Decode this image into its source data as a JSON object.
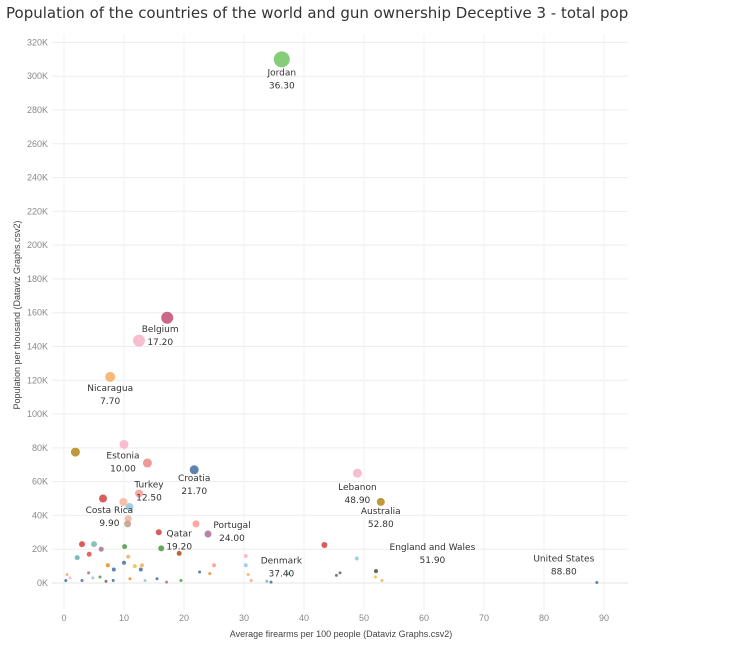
{
  "chart_data": {
    "type": "scatter",
    "title": "Population of the countries of the world and gun ownership Deceptive 3 - total pop",
    "xlabel": "Average firearms per 100 people (Dataviz Graphs.csv2)",
    "ylabel": "Population per thousand (Dataviz Graphs.csv2)",
    "xlim": [
      -2,
      94
    ],
    "ylim": [
      -16000,
      325000
    ],
    "x_ticks": [
      0,
      10,
      20,
      30,
      40,
      50,
      60,
      70,
      80,
      90
    ],
    "y_ticks": [
      0,
      20000,
      40000,
      60000,
      80000,
      100000,
      120000,
      140000,
      160000,
      180000,
      200000,
      220000,
      240000,
      260000,
      280000,
      300000,
      320000
    ],
    "y_tick_labels": [
      "0K",
      "20K",
      "40K",
      "60K",
      "80K",
      "100K",
      "120K",
      "140K",
      "160K",
      "180K",
      "200K",
      "220K",
      "240K",
      "260K",
      "280K",
      "300K",
      "320K"
    ],
    "grid": true,
    "points": [
      {
        "x": 36.3,
        "y": 310000,
        "label": "Jordan",
        "value_label": "36.30",
        "color": "#7cc96f",
        "size": 8
      },
      {
        "x": 17.2,
        "y": 157000,
        "label": "Belgium",
        "value_label": "17.20",
        "color": "#c85a7c",
        "size": 6
      },
      {
        "x": 12.5,
        "y": 143500,
        "label": "",
        "value_label": "",
        "color": "#f7b9cc",
        "size": 6
      },
      {
        "x": 7.7,
        "y": 122000,
        "label": "Nicaragua",
        "value_label": "7.70",
        "color": "#f9b36a",
        "size": 5
      },
      {
        "x": 10.0,
        "y": 82000,
        "label": "Estonia",
        "value_label": "10.00",
        "color": "#f7b9cc",
        "size": 4.5
      },
      {
        "x": 13.9,
        "y": 71000,
        "label": "",
        "value_label": "",
        "color": "#ee8f8f",
        "size": 4.5
      },
      {
        "x": 1.9,
        "y": 77500,
        "label": "",
        "value_label": "",
        "color": "#b8912a",
        "size": 4.5
      },
      {
        "x": 21.7,
        "y": 67000,
        "label": "Croatia",
        "value_label": "21.70",
        "color": "#4e79a7",
        "size": 4.5
      },
      {
        "x": 12.5,
        "y": 53000,
        "label": "Turkey",
        "value_label": "12.50",
        "color": "#ff9d9a",
        "size": 4
      },
      {
        "x": 6.5,
        "y": 50000,
        "label": "",
        "value_label": "",
        "color": "#d64f4f",
        "size": 4
      },
      {
        "x": 9.9,
        "y": 48000,
        "label": "Costa Rica",
        "value_label": "9.90",
        "color": "#f7b9a0",
        "size": 4
      },
      {
        "x": 10.9,
        "y": 45000,
        "label": "",
        "value_label": "",
        "color": "#9ecae1",
        "size": 4
      },
      {
        "x": 10.7,
        "y": 38000,
        "label": "",
        "value_label": "",
        "color": "#f2b9a0",
        "size": 3.5
      },
      {
        "x": 10.6,
        "y": 35000,
        "label": "",
        "value_label": "",
        "color": "#c4a494",
        "size": 3.5
      },
      {
        "x": 48.9,
        "y": 65000,
        "label": "Lebanon",
        "value_label": "48.90",
        "color": "#f7b9cc",
        "size": 4.5
      },
      {
        "x": 52.8,
        "y": 48000,
        "label": "Australia",
        "value_label": "52.80",
        "color": "#b8912a",
        "size": 4
      },
      {
        "x": 22.0,
        "y": 35000,
        "label": "",
        "value_label": "",
        "color": "#ff9d9a",
        "size": 3.5
      },
      {
        "x": 24.0,
        "y": 29000,
        "label": "Portugal",
        "value_label": "24.00",
        "color": "#b07aa1",
        "size": 3.5
      },
      {
        "x": 19.2,
        "y": 17500,
        "label": "Qatar",
        "value_label": "19.20",
        "color": "#b6582a",
        "size": 2.5
      },
      {
        "x": 15.8,
        "y": 30000,
        "label": "",
        "value_label": "",
        "color": "#d64f4f",
        "size": 3
      },
      {
        "x": 16.2,
        "y": 20500,
        "label": "",
        "value_label": "",
        "color": "#59a14f",
        "size": 3
      },
      {
        "x": 3.0,
        "y": 23000,
        "label": "",
        "value_label": "",
        "color": "#d64f4f",
        "size": 3
      },
      {
        "x": 5.0,
        "y": 23000,
        "label": "",
        "value_label": "",
        "color": "#86bcb6",
        "size": 3
      },
      {
        "x": 6.2,
        "y": 20000,
        "label": "",
        "value_label": "",
        "color": "#b07aa1",
        "size": 2.5
      },
      {
        "x": 4.2,
        "y": 17000,
        "label": "",
        "value_label": "",
        "color": "#e15759",
        "size": 2.5
      },
      {
        "x": 2.2,
        "y": 15000,
        "label": "",
        "value_label": "",
        "color": "#76b7b2",
        "size": 2.5
      },
      {
        "x": 10.1,
        "y": 21500,
        "label": "",
        "value_label": "",
        "color": "#59a14f",
        "size": 2.5
      },
      {
        "x": 10.7,
        "y": 15500,
        "label": "",
        "value_label": "",
        "color": "#f9b36a",
        "size": 2
      },
      {
        "x": 10.0,
        "y": 12000,
        "label": "",
        "value_label": "",
        "color": "#4e79a7",
        "size": 2
      },
      {
        "x": 7.3,
        "y": 10500,
        "label": "",
        "value_label": "",
        "color": "#f28e2b",
        "size": 2
      },
      {
        "x": 11.8,
        "y": 10000,
        "label": "",
        "value_label": "",
        "color": "#edc948",
        "size": 2
      },
      {
        "x": 13.0,
        "y": 10500,
        "label": "",
        "value_label": "",
        "color": "#f9b36a",
        "size": 2
      },
      {
        "x": 8.3,
        "y": 8000,
        "label": "",
        "value_label": "",
        "color": "#4e79a7",
        "size": 2
      },
      {
        "x": 12.8,
        "y": 8000,
        "label": "",
        "value_label": "",
        "color": "#4e79a7",
        "size": 2
      },
      {
        "x": 43.4,
        "y": 22500,
        "label": "",
        "value_label": "",
        "color": "#d64f4f",
        "size": 3
      },
      {
        "x": 48.8,
        "y": 14500,
        "label": "",
        "value_label": "",
        "color": "#9ecae1",
        "size": 2
      },
      {
        "x": 52.0,
        "y": 7000,
        "label": "",
        "value_label": "",
        "color": "#59594f",
        "size": 2
      },
      {
        "x": 46.0,
        "y": 6000,
        "label": "",
        "value_label": "",
        "color": "#79706e",
        "size": 1.5
      },
      {
        "x": 45.4,
        "y": 4500,
        "label": "",
        "value_label": "",
        "color": "#79706e",
        "size": 1.5
      },
      {
        "x": 30.3,
        "y": 16000,
        "label": "",
        "value_label": "",
        "color": "#f7b9cc",
        "size": 2
      },
      {
        "x": 30.3,
        "y": 10500,
        "label": "",
        "value_label": "",
        "color": "#9ecae1",
        "size": 2
      },
      {
        "x": 30.7,
        "y": 5000,
        "label": "",
        "value_label": "",
        "color": "#f9b36a",
        "size": 1.5
      },
      {
        "x": 37.4,
        "y": 5500,
        "label": "Denmark",
        "value_label": "37.40",
        "color": "#86bcb6",
        "size": 1.5
      },
      {
        "x": 33.8,
        "y": 1000,
        "label": "",
        "value_label": "",
        "color": "#86bcb6",
        "size": 1.5
      },
      {
        "x": 34.5,
        "y": 500,
        "label": "",
        "value_label": "",
        "color": "#4e79a7",
        "size": 1.5
      },
      {
        "x": 25.0,
        "y": 10500,
        "label": "",
        "value_label": "",
        "color": "#ff9d9a",
        "size": 2
      },
      {
        "x": 22.6,
        "y": 6500,
        "label": "",
        "value_label": "",
        "color": "#4e79a7",
        "size": 1.5
      },
      {
        "x": 24.3,
        "y": 5500,
        "label": "",
        "value_label": "",
        "color": "#f28e2b",
        "size": 1.5
      },
      {
        "x": 51.9,
        "y": 3500,
        "label": "England and Wales",
        "value_label": "51.90",
        "color": "#edc948",
        "size": 1.5
      },
      {
        "x": 88.8,
        "y": 300,
        "label": "United States",
        "value_label": "88.80",
        "color": "#4e79a7",
        "size": 1.5
      },
      {
        "x": 0.5,
        "y": 5000,
        "label": "",
        "value_label": "",
        "color": "#f9b36a",
        "size": 1.5
      },
      {
        "x": 0.3,
        "y": 1500,
        "label": "",
        "value_label": "",
        "color": "#4e79a7",
        "size": 1.5
      },
      {
        "x": 1.0,
        "y": 3000,
        "label": "",
        "value_label": "",
        "color": "#f7b9cc",
        "size": 1.5
      },
      {
        "x": 3.0,
        "y": 1500,
        "label": "",
        "value_label": "",
        "color": "#4e79a7",
        "size": 1.5
      },
      {
        "x": 4.1,
        "y": 6000,
        "label": "",
        "value_label": "",
        "color": "#b07aa1",
        "size": 1.5
      },
      {
        "x": 4.8,
        "y": 3000,
        "label": "",
        "value_label": "",
        "color": "#9ecae1",
        "size": 1.5
      },
      {
        "x": 6.0,
        "y": 3500,
        "label": "",
        "value_label": "",
        "color": "#59a14f",
        "size": 1.5
      },
      {
        "x": 7.0,
        "y": 1000,
        "label": "",
        "value_label": "",
        "color": "#79706e",
        "size": 1.5
      },
      {
        "x": 8.2,
        "y": 1500,
        "label": "",
        "value_label": "",
        "color": "#4e79a7",
        "size": 1.5
      },
      {
        "x": 11.0,
        "y": 2500,
        "label": "",
        "value_label": "",
        "color": "#f28e2b",
        "size": 1.5
      },
      {
        "x": 13.5,
        "y": 1500,
        "label": "",
        "value_label": "",
        "color": "#9ecae1",
        "size": 1.5
      },
      {
        "x": 15.5,
        "y": 2500,
        "label": "",
        "value_label": "",
        "color": "#4e79a7",
        "size": 1.5
      },
      {
        "x": 17.1,
        "y": 500,
        "label": "",
        "value_label": "",
        "color": "#b07aa1",
        "size": 1.5
      },
      {
        "x": 19.5,
        "y": 1500,
        "label": "",
        "value_label": "",
        "color": "#59a14f",
        "size": 1.5
      },
      {
        "x": 31.2,
        "y": 1500,
        "label": "",
        "value_label": "",
        "color": "#f9b36a",
        "size": 1.5
      },
      {
        "x": 53.0,
        "y": 1500,
        "label": "",
        "value_label": "",
        "color": "#f9b36a",
        "size": 1.5
      }
    ]
  }
}
